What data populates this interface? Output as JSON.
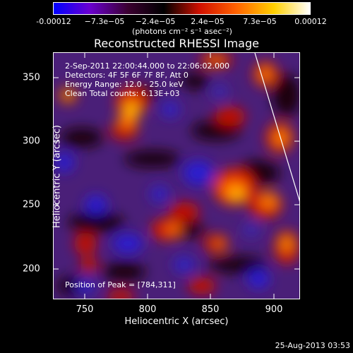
{
  "colorbar": {
    "labels": [
      "-0.00012",
      "−7.3e−05",
      "−2.4e−05",
      "2.4e−05",
      "7.3e−05",
      "0.00012"
    ],
    "units": "(photons cm⁻² s⁻¹ asec⁻²)",
    "colors": [
      "#0000ff",
      "#6a00d0",
      "#3a0030",
      "#000000",
      "#d01000",
      "#ff6000",
      "#ffd000",
      "#ffffff"
    ]
  },
  "title": "Reconstructed RHESSI Image",
  "info": {
    "time_range": "2-Sep-2011 22:00:44.000 to 22:06:02.000",
    "detectors": "Detectors: 4F 5F 6F 7F 8F, Att 0",
    "energy": "Energy Range: 12.0 - 25.0 keV",
    "clean": "Clean     Total counts: 6.13E+03",
    "peak": "Position of Peak = [784,311]"
  },
  "axes": {
    "xlabel": "Heliocentric X (arcsec)",
    "ylabel": "Heliocentric Y (arcsec)",
    "xticks": [
      "750",
      "800",
      "850",
      "900"
    ],
    "yticks": [
      "350",
      "300",
      "250",
      "200"
    ],
    "xlim": [
      725,
      918
    ],
    "ylim": [
      175,
      370
    ]
  },
  "timestamp": "25-Aug-2013 03:53"
}
